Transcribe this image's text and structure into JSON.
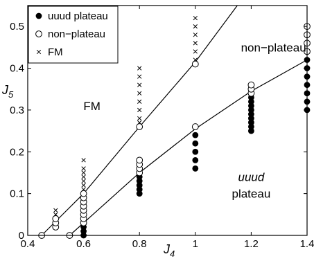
{
  "chart_data": {
    "type": "scatter",
    "xlabel": "J",
    "xlabel_sub": "4",
    "ylabel": "J",
    "ylabel_sub": "5",
    "xlim": [
      0.4,
      1.4
    ],
    "ylim": [
      0,
      0.55
    ],
    "xticks": [
      0.4,
      0.6,
      0.8,
      1.0,
      1.2,
      1.4
    ],
    "xtick_labels": [
      "0.4",
      "0.6",
      "0.8",
      "1",
      "1.2",
      "1.4"
    ],
    "yticks": [
      0,
      0.1,
      0.2,
      0.3,
      0.4,
      0.5
    ],
    "ytick_labels": [
      "0",
      "0.1",
      "0.2",
      "0.3",
      "0.4",
      "0.5"
    ],
    "grid": false,
    "legend_position": "top-left",
    "series": [
      {
        "name": "uuud plateau",
        "marker": "filled-circle",
        "points": [
          [
            0.6,
            0.0
          ],
          [
            0.6,
            0.01
          ],
          [
            0.6,
            0.02
          ],
          [
            0.8,
            0.1
          ],
          [
            0.8,
            0.11
          ],
          [
            0.8,
            0.12
          ],
          [
            0.8,
            0.13
          ],
          [
            0.8,
            0.14
          ],
          [
            1.0,
            0.16
          ],
          [
            1.0,
            0.18
          ],
          [
            1.0,
            0.2
          ],
          [
            1.0,
            0.22
          ],
          [
            1.0,
            0.24
          ],
          [
            1.2,
            0.25
          ],
          [
            1.2,
            0.26
          ],
          [
            1.2,
            0.27
          ],
          [
            1.2,
            0.28
          ],
          [
            1.2,
            0.29
          ],
          [
            1.2,
            0.3
          ],
          [
            1.2,
            0.31
          ],
          [
            1.2,
            0.32
          ],
          [
            1.2,
            0.33
          ],
          [
            1.4,
            0.3
          ],
          [
            1.4,
            0.32
          ],
          [
            1.4,
            0.34
          ],
          [
            1.4,
            0.36
          ],
          [
            1.4,
            0.38
          ],
          [
            1.4,
            0.4
          ],
          [
            1.4,
            0.42
          ]
        ]
      },
      {
        "name": "non−plateau",
        "marker": "open-circle",
        "points": [
          [
            0.45,
            0.0
          ],
          [
            0.5,
            0.02
          ],
          [
            0.5,
            0.03
          ],
          [
            0.5,
            0.04
          ],
          [
            0.55,
            0.0
          ],
          [
            0.6,
            0.03
          ],
          [
            0.6,
            0.04
          ],
          [
            0.6,
            0.05
          ],
          [
            0.6,
            0.06
          ],
          [
            0.6,
            0.07
          ],
          [
            0.6,
            0.08
          ],
          [
            0.6,
            0.09
          ],
          [
            0.6,
            0.1
          ],
          [
            0.8,
            0.15
          ],
          [
            0.8,
            0.16
          ],
          [
            0.8,
            0.17
          ],
          [
            0.8,
            0.18
          ],
          [
            0.8,
            0.26
          ],
          [
            1.0,
            0.26
          ],
          [
            1.0,
            0.41
          ],
          [
            1.2,
            0.34
          ],
          [
            1.2,
            0.35
          ],
          [
            1.2,
            0.36
          ],
          [
            1.4,
            0.44
          ],
          [
            1.4,
            0.46
          ],
          [
            1.4,
            0.48
          ],
          [
            1.4,
            0.5
          ]
        ]
      },
      {
        "name": "FM",
        "marker": "cross",
        "points": [
          [
            0.5,
            0.05
          ],
          [
            0.5,
            0.06
          ],
          [
            0.6,
            0.11
          ],
          [
            0.6,
            0.12
          ],
          [
            0.6,
            0.13
          ],
          [
            0.6,
            0.14
          ],
          [
            0.6,
            0.15
          ],
          [
            0.6,
            0.16
          ],
          [
            0.6,
            0.18
          ],
          [
            0.8,
            0.27
          ],
          [
            0.8,
            0.28
          ],
          [
            0.8,
            0.3
          ],
          [
            0.8,
            0.32
          ],
          [
            0.8,
            0.34
          ],
          [
            0.8,
            0.36
          ],
          [
            0.8,
            0.38
          ],
          [
            0.8,
            0.4
          ],
          [
            1.0,
            0.42
          ],
          [
            1.0,
            0.44
          ],
          [
            1.0,
            0.46
          ],
          [
            1.0,
            0.48
          ],
          [
            1.0,
            0.5
          ],
          [
            1.0,
            0.52
          ]
        ]
      }
    ],
    "boundary_lines": [
      {
        "points": [
          [
            0.45,
            0.0
          ],
          [
            0.6,
            0.1
          ],
          [
            0.8,
            0.26
          ],
          [
            1.0,
            0.415
          ],
          [
            1.15,
            0.55
          ]
        ]
      },
      {
        "points": [
          [
            0.55,
            0.0
          ],
          [
            0.8,
            0.15
          ],
          [
            1.0,
            0.255
          ],
          [
            1.2,
            0.345
          ],
          [
            1.4,
            0.42
          ]
        ]
      }
    ],
    "annotations": [
      {
        "text": "FM",
        "x": 0.63,
        "y": 0.3,
        "italic": false
      },
      {
        "text": "non−plateau",
        "x": 1.28,
        "y": 0.44,
        "italic": false
      },
      {
        "text": "uuud",
        "x": 1.2,
        "y": 0.13,
        "italic": true
      },
      {
        "text": "plateau",
        "x": 1.2,
        "y": 0.09,
        "italic": false
      }
    ]
  }
}
